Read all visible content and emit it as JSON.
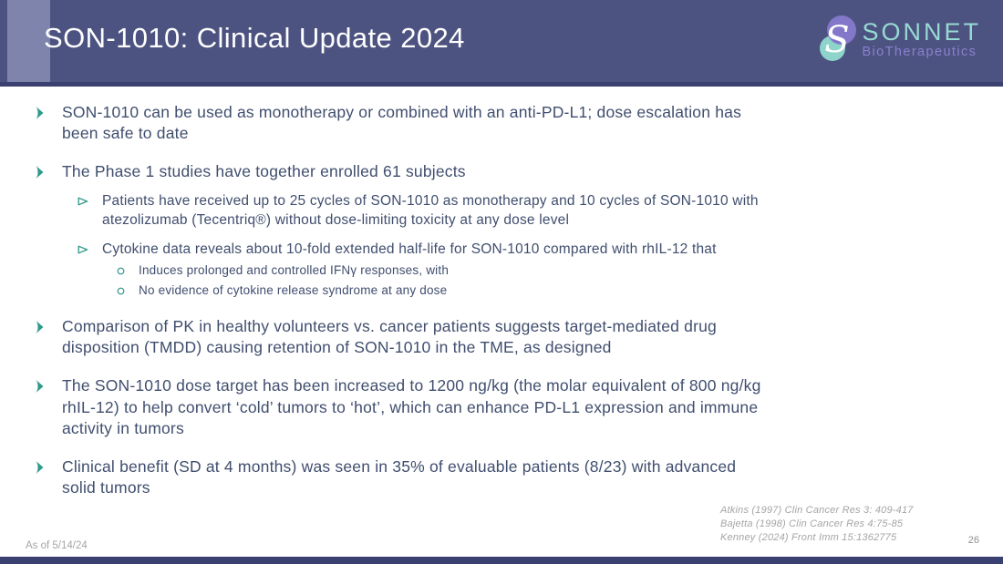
{
  "header": {
    "title": "SON-1010: Clinical Update 2024"
  },
  "logo": {
    "name": "SONNET",
    "subtitle": "BioTherapeutics"
  },
  "bullets": [
    {
      "level": 1,
      "text": "SON-1010 can be used as monotherapy or combined with an anti-PD-L1; dose escalation has\nbeen safe to date"
    },
    {
      "level": 1,
      "text": "The Phase 1 studies have together enrolled 61 subjects"
    },
    {
      "level": 2,
      "text": "Patients have received up to 25 cycles of SON-1010 as monotherapy and 10 cycles of SON-1010 with\natezolizumab (Tecentriq®) without dose-limiting toxicity at any dose level"
    },
    {
      "level": 2,
      "text": "Cytokine data reveals about 10-fold extended half-life for SON-1010 compared with rhIL-12 that"
    },
    {
      "level": 3,
      "text": "Induces prolonged and controlled IFNγ responses, with"
    },
    {
      "level": 3,
      "text": "No evidence of cytokine release syndrome at any dose"
    },
    {
      "level": 1,
      "text": "Comparison of PK in healthy volunteers vs. cancer patients suggests target-mediated drug\ndisposition (TMDD) causing retention of SON-1010 in the TME, as designed"
    },
    {
      "level": 1,
      "text": "The SON-1010 dose target has been increased to 1200 ng/kg (the molar equivalent of 800 ng/kg\nrhIL-12) to help convert ‘cold’ tumors to ‘hot’, which can enhance PD-L1 expression and immune\nactivity in tumors"
    },
    {
      "level": 1,
      "text": "Clinical benefit (SD at 4 months) was seen in 35% of evaluable patients (8/23) with advanced\nsolid tumors"
    }
  ],
  "references": [
    "Atkins (1997) Clin Cancer Res 3: 409-417",
    "Bajetta (1998) Clin Cancer Res 4:75-85",
    "Kenney (2024) Front Imm 15:1362775"
  ],
  "footer": {
    "as_of": "As of 5/14/24",
    "page_number": "26"
  },
  "colors": {
    "header_background": "#4d5381",
    "header_accent": "#7e84ab",
    "header_strip": "#3a4170",
    "body_text": "#404e6e",
    "bullet_teal": "#2d998b",
    "footer_gray": "#a5a5a5",
    "logo_purple": "#8277c9",
    "logo_teal": "#8ed4cb",
    "logo_name_color": "#97d9d3",
    "logo_subtitle_color": "#8a7fd0"
  }
}
